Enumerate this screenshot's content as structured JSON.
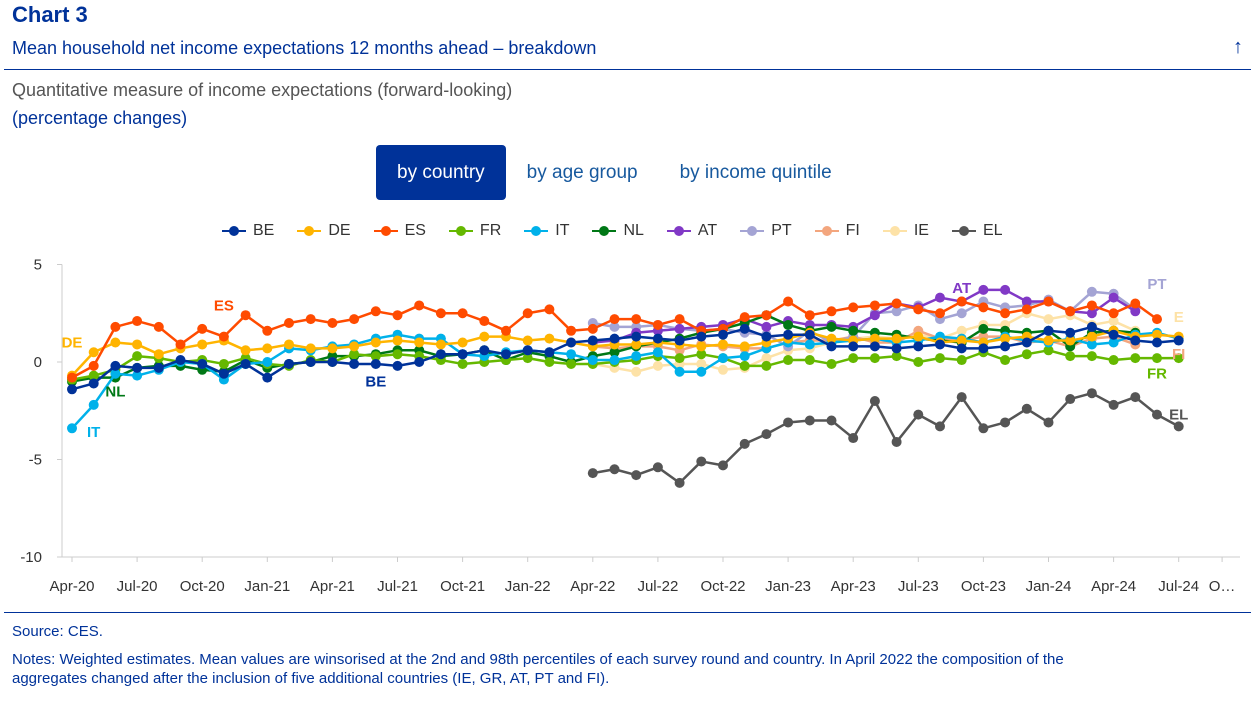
{
  "header": {
    "title": "Chart 3",
    "subtitle": "Mean household net income expectations 12 months ahead – breakdown",
    "description": "Quantitative measure of income expectations (forward-looking)",
    "unit": "(percentage changes)"
  },
  "tabs": [
    {
      "label": "by country",
      "active": true
    },
    {
      "label": "by age group",
      "active": false
    },
    {
      "label": "by income quintile",
      "active": false
    }
  ],
  "footer": {
    "source": "Source: CES.",
    "notes_line1": "Notes: Weighted estimates. Mean values are winsorised at the 2nd and 98th percentiles of each survey round and country. In April 2022 the composition of the",
    "notes_line2": "aggregates changed after the inclusion of five additional countries (IE, GR, AT, PT and FI)."
  },
  "chart_data": {
    "type": "line",
    "title": "Mean household net income expectations 12 months ahead – breakdown",
    "ylabel": "percentage changes",
    "ylim": [
      -10,
      5
    ],
    "yticks": [
      -10,
      -5,
      0,
      5
    ],
    "xlim": [
      0,
      53
    ],
    "xticks": [
      {
        "i": 0,
        "label": "Apr-20"
      },
      {
        "i": 3,
        "label": "Jul-20"
      },
      {
        "i": 6,
        "label": "Oct-20"
      },
      {
        "i": 9,
        "label": "Jan-21"
      },
      {
        "i": 12,
        "label": "Apr-21"
      },
      {
        "i": 15,
        "label": "Jul-21"
      },
      {
        "i": 18,
        "label": "Oct-21"
      },
      {
        "i": 21,
        "label": "Jan-22"
      },
      {
        "i": 24,
        "label": "Apr-22"
      },
      {
        "i": 27,
        "label": "Jul-22"
      },
      {
        "i": 30,
        "label": "Oct-22"
      },
      {
        "i": 33,
        "label": "Jan-23"
      },
      {
        "i": 36,
        "label": "Apr-23"
      },
      {
        "i": 39,
        "label": "Jul-23"
      },
      {
        "i": 42,
        "label": "Oct-23"
      },
      {
        "i": 45,
        "label": "Jan-24"
      },
      {
        "i": 48,
        "label": "Apr-24"
      },
      {
        "i": 51,
        "label": "Jul-24"
      },
      {
        "i": 53,
        "label": "O…"
      }
    ],
    "series": [
      {
        "name": "BE",
        "color": "#003299",
        "start": 0,
        "values": [
          -1.4,
          -1.1,
          -0.2,
          -0.3,
          -0.3,
          0.1,
          -0.1,
          -0.6,
          -0.1,
          -0.8,
          -0.1,
          0.0,
          0.0,
          -0.1,
          -0.1,
          -0.2,
          0.0,
          0.4,
          0.4,
          0.6,
          0.4,
          0.6,
          0.5,
          1.0,
          1.1,
          1.2,
          1.3,
          1.2,
          1.1,
          1.3,
          1.4,
          1.7,
          1.3,
          1.4,
          1.4,
          0.8,
          0.8,
          0.8,
          0.7,
          0.8,
          0.9,
          0.7,
          0.7,
          0.8,
          1.0,
          1.6,
          1.5,
          1.8,
          1.4,
          1.1,
          1.0,
          1.1
        ]
      },
      {
        "name": "DE",
        "color": "#ffb400",
        "start": 0,
        "values": [
          -0.7,
          0.5,
          1.0,
          0.9,
          0.4,
          0.7,
          0.9,
          1.1,
          0.6,
          0.7,
          0.9,
          0.7,
          0.7,
          0.8,
          1.0,
          1.1,
          1.0,
          0.9,
          1.0,
          1.3,
          1.3,
          1.1,
          1.2,
          1.0,
          0.8,
          0.9,
          0.9,
          1.0,
          0.9,
          0.8,
          0.9,
          0.8,
          1.0,
          1.2,
          1.5,
          1.2,
          1.1,
          1.2,
          1.2,
          1.3,
          1.0,
          1.1,
          1.0,
          1.2,
          1.3,
          1.1,
          1.1,
          1.3,
          1.6,
          1.3,
          1.4,
          1.3
        ]
      },
      {
        "name": "ES",
        "color": "#ff4b00",
        "start": 0,
        "values": [
          -0.8,
          -0.2,
          1.8,
          2.1,
          1.8,
          0.9,
          1.7,
          1.3,
          2.4,
          1.6,
          2.0,
          2.2,
          2.0,
          2.2,
          2.6,
          2.4,
          2.9,
          2.5,
          2.5,
          2.1,
          1.6,
          2.5,
          2.7,
          1.6,
          1.7,
          2.2,
          2.2,
          1.9,
          2.2,
          1.6,
          1.7,
          2.3,
          2.4,
          3.1,
          2.4,
          2.6,
          2.8,
          2.9,
          3.0,
          2.7,
          2.5,
          3.1,
          2.8,
          2.5,
          2.7,
          3.1,
          2.6,
          2.9,
          2.5,
          3.0,
          2.2
        ]
      },
      {
        "name": "FR",
        "color": "#65b800",
        "start": 0,
        "values": [
          -0.9,
          -0.7,
          -0.4,
          0.3,
          0.2,
          0.0,
          0.1,
          -0.1,
          0.2,
          -0.1,
          -0.2,
          0.1,
          0.0,
          0.4,
          0.3,
          0.4,
          0.3,
          0.1,
          -0.1,
          0.0,
          0.1,
          0.2,
          0.0,
          -0.1,
          -0.1,
          0.0,
          0.1,
          0.3,
          0.2,
          0.4,
          0.2,
          -0.2,
          -0.2,
          0.1,
          0.1,
          -0.1,
          0.2,
          0.2,
          0.3,
          0.0,
          0.2,
          0.1,
          0.5,
          0.1,
          0.4,
          0.6,
          0.3,
          0.3,
          0.1,
          0.2,
          0.2,
          0.2
        ]
      },
      {
        "name": "IT",
        "color": "#00b1ea",
        "start": 0,
        "values": [
          -3.4,
          -2.2,
          -0.6,
          -0.7,
          -0.4,
          0.0,
          -0.1,
          -0.9,
          -0.1,
          0.0,
          0.7,
          0.6,
          0.8,
          0.9,
          1.2,
          1.4,
          1.2,
          1.2,
          0.4,
          0.3,
          0.5,
          0.6,
          0.5,
          0.4,
          0.1,
          0.1,
          0.3,
          0.5,
          -0.5,
          -0.5,
          0.2,
          0.3,
          0.7,
          1.0,
          0.9,
          1.0,
          1.1,
          1.2,
          1.0,
          1.1,
          1.3,
          1.2,
          1.0,
          1.3,
          1.1,
          1.0,
          1.2,
          0.9,
          1.0,
          1.4,
          1.5,
          1.2
        ]
      },
      {
        "name": "NL",
        "color": "#007816",
        "start": 0,
        "values": [
          -1.0,
          -0.8,
          -0.8,
          -0.3,
          -0.2,
          -0.2,
          -0.4,
          -0.5,
          0.1,
          -0.3,
          -0.1,
          0.0,
          0.3,
          0.3,
          0.4,
          0.6,
          0.6,
          0.3,
          0.4,
          0.6,
          0.1,
          0.5,
          0.3,
          0.0,
          0.3,
          0.5,
          0.8,
          1.0,
          1.2,
          1.5,
          1.7,
          2.0,
          2.4,
          1.9,
          1.6,
          1.8,
          1.6,
          1.5,
          1.4,
          1.2,
          1.1,
          1.0,
          1.7,
          1.6,
          1.5,
          1.6,
          0.8,
          1.5,
          1.6,
          1.5
        ]
      },
      {
        "name": "AT",
        "color": "#8139c6",
        "start": 24,
        "values": [
          1.0,
          1.1,
          1.5,
          1.6,
          1.7,
          1.8,
          1.9,
          2.2,
          1.8,
          2.1,
          1.9,
          1.9,
          1.8,
          2.4,
          3.0,
          2.8,
          3.3,
          3.1,
          3.7,
          3.7,
          3.1,
          3.1,
          2.6,
          2.5,
          3.3,
          2.6
        ]
      },
      {
        "name": "PT",
        "color": "#a4a4d4",
        "start": 24,
        "values": [
          2.0,
          1.8,
          1.8,
          1.9,
          1.7,
          1.6,
          1.7,
          1.5,
          1.4,
          0.8,
          1.6,
          1.0,
          1.3,
          2.5,
          2.6,
          2.9,
          2.2,
          2.5,
          3.1,
          2.8,
          2.9,
          3.2,
          2.6,
          3.6,
          3.5,
          2.7
        ]
      },
      {
        "name": "FI",
        "color": "#f3a67e",
        "start": 24,
        "values": [
          0.8,
          0.7,
          0.8,
          0.8,
          0.6,
          0.9,
          0.8,
          0.7,
          0.7,
          1.0,
          1.1,
          1.1,
          1.3,
          1.0,
          1.0,
          1.6,
          1.2,
          1.1,
          1.3,
          1.3,
          1.0,
          1.1,
          0.8,
          1.2,
          1.3,
          0.9
        ]
      },
      {
        "name": "IE",
        "color": "#fde2a7",
        "start": 24,
        "values": [
          -0.1,
          -0.3,
          -0.5,
          -0.2,
          -0.1,
          -0.1,
          -0.4,
          -0.3,
          0.2,
          0.6,
          0.7,
          1.0,
          1.2,
          1.3,
          1.2,
          1.4,
          1.2,
          1.6,
          1.9,
          1.9,
          2.5,
          2.2,
          2.4,
          1.9,
          2.1,
          1.6
        ]
      },
      {
        "name": "EL",
        "color": "#555555",
        "start": 24,
        "values": [
          -5.7,
          -5.5,
          -5.8,
          -5.4,
          -6.2,
          -5.1,
          -5.3,
          -4.2,
          -3.7,
          -3.1,
          -3.0,
          -3.0,
          -3.9,
          -2.0,
          -4.1,
          -2.7,
          -3.3,
          -1.8,
          -3.4,
          -3.1,
          -2.4,
          -3.1,
          -1.9,
          -1.6,
          -2.2,
          -1.8,
          -2.7,
          -3.3
        ]
      }
    ],
    "annotations": [
      {
        "text": "DE",
        "series": "DE",
        "i": 0,
        "v": 1.0
      },
      {
        "text": "ES",
        "series": "ES",
        "i": 7,
        "v": 2.9
      },
      {
        "text": "NL",
        "series": "NL",
        "i": 2,
        "v": -1.5
      },
      {
        "text": "IT",
        "series": "IT",
        "i": 1,
        "v": -3.6
      },
      {
        "text": "BE",
        "series": "BE",
        "i": 14,
        "v": -1.0
      },
      {
        "text": "AT",
        "series": "AT",
        "i": 41,
        "v": 3.8
      },
      {
        "text": "PT",
        "series": "PT",
        "i": 50,
        "v": 4.0
      },
      {
        "text": "E",
        "series": "IE",
        "i": 51,
        "v": 2.3
      },
      {
        "text": "FI",
        "series": "FI",
        "i": 51,
        "v": 0.4
      },
      {
        "text": "FR",
        "series": "FR",
        "i": 50,
        "v": -0.6
      },
      {
        "text": "EL",
        "series": "EL",
        "i": 51,
        "v": -2.7
      }
    ]
  }
}
